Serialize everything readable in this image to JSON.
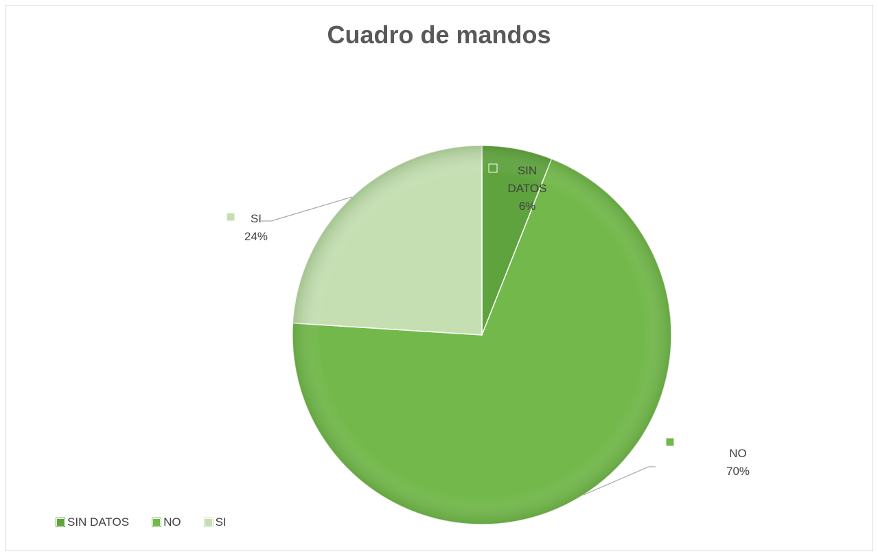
{
  "chart_data": {
    "type": "pie",
    "title": "Cuadro de mandos",
    "categories": [
      "SIN DATOS",
      "NO",
      "SI"
    ],
    "values": [
      6,
      70,
      24
    ],
    "data_labels": [
      {
        "name_lines": [
          "SIN",
          "DATOS"
        ],
        "percent": "6%"
      },
      {
        "name_lines": [
          "NO"
        ],
        "percent": "70%"
      },
      {
        "name_lines": [
          "SI"
        ],
        "percent": "24%"
      }
    ],
    "colors": [
      "#5fa33e",
      "#72b84a",
      "#c5dfb3"
    ],
    "legend": {
      "position": "bottom-left",
      "entries": [
        "SIN DATOS",
        "NO",
        "SI"
      ]
    }
  }
}
